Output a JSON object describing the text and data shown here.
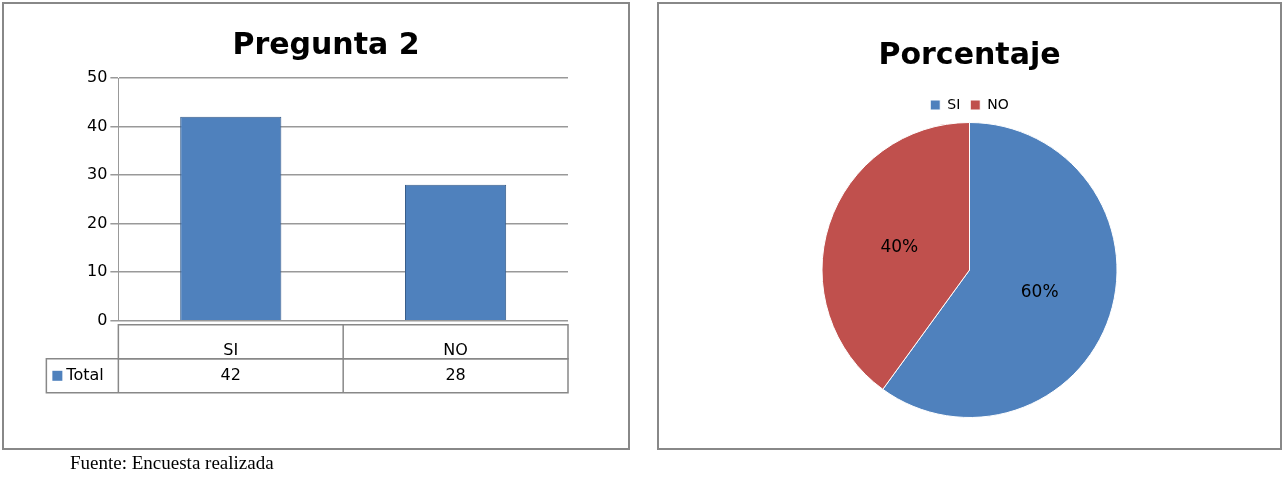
{
  "chart_data": [
    {
      "type": "bar",
      "title": "Pregunta 2",
      "categories": [
        "SI",
        "NO"
      ],
      "series": [
        {
          "name": "Total",
          "color": "#4f81bd",
          "values": [
            42,
            28
          ]
        }
      ],
      "ylim": [
        0,
        50
      ],
      "yticks": [
        0,
        10,
        20,
        30,
        40,
        50
      ],
      "grid": "y",
      "data_labels": true,
      "legend": "bottom",
      "annotations": [
        "Fuente: Encuesta realizada"
      ]
    },
    {
      "type": "pie",
      "title": "Porcentaje",
      "categories": [
        "SI",
        "NO"
      ],
      "values": [
        60,
        40
      ],
      "value_labels": [
        "60%",
        "40%"
      ],
      "colors": [
        "#4f81bd",
        "#c0504d"
      ],
      "legend": "top"
    }
  ]
}
